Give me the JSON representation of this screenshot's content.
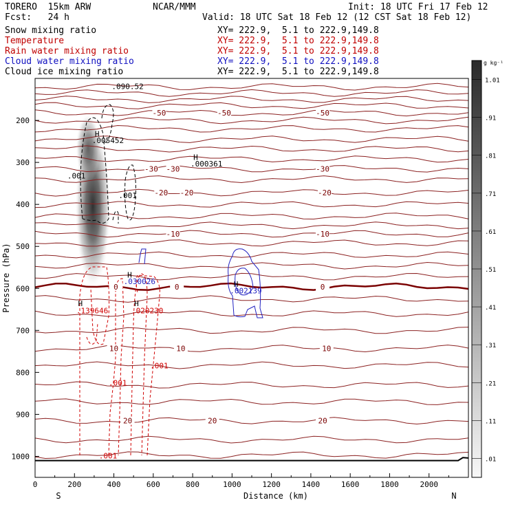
{
  "header": {
    "model": "TORERO  15km ARW",
    "center": "NCAR/MMM",
    "init": "Init: 18 UTC Fri 17 Feb 12",
    "fcst": "Fcst:   24 h",
    "valid": "Valid: 18 UTC Sat 18 Feb 12 (12 CST Sat 18 Feb 12)"
  },
  "fields": [
    {
      "name": "Snow mixing ratio",
      "xy": "XY= 222.9,  5.1 to 222.9,149.8",
      "color": "#000000"
    },
    {
      "name": "Temperature",
      "xy": "XY= 222.9,  5.1 to 222.9,149.8",
      "color": "#c00000"
    },
    {
      "name": "Rain water mixing ratio",
      "xy": "XY= 222.9,  5.1 to 222.9,149.8",
      "color": "#c00000"
    },
    {
      "name": "Cloud water mixing ratio",
      "xy": "XY= 222.9,  5.1 to 222.9,149.8",
      "color": "#1010c0"
    },
    {
      "name": "Cloud ice mixing ratio",
      "xy": "XY= 222.9,  5.1 to 222.9,149.8",
      "color": "#000000"
    }
  ],
  "chart_data": {
    "type": "cross-section contour",
    "xlabel": "Distance (km)",
    "ylabel": "Pressure (hPa)",
    "xlim": [
      0,
      2200
    ],
    "ylim": [
      1050,
      100
    ],
    "x_ticks": [
      "0",
      "200",
      "400",
      "600",
      "800",
      "1000",
      "1200",
      "1400",
      "1600",
      "1800",
      "2000"
    ],
    "x_tick_values": [
      0,
      200,
      400,
      600,
      800,
      1000,
      1200,
      1400,
      1600,
      1800,
      2000
    ],
    "y_ticks": [
      "200",
      "300",
      "400",
      "500",
      "600",
      "700",
      "800",
      "900",
      "1000"
    ],
    "y_tick_values": [
      200,
      300,
      400,
      500,
      600,
      700,
      800,
      900,
      1000
    ],
    "left_end_label": "S",
    "right_end_label": "N",
    "colorbar": {
      "unit": "g kg⁻¹",
      "labels": [
        "1.01",
        ".91",
        ".81",
        ".71",
        ".61",
        ".51",
        ".41",
        ".31",
        ".21",
        ".11",
        ".01"
      ],
      "values": [
        1.01,
        0.91,
        0.81,
        0.71,
        0.61,
        0.51,
        0.41,
        0.31,
        0.21,
        0.11,
        0.01
      ]
    },
    "temperature_contours": [
      {
        "label": "-50",
        "pressure": 182,
        "label_x": [
          630,
          960,
          1460
        ]
      },
      {
        "label": "-30",
        "pressure": 315,
        "label_x": [
          590,
          700,
          1460
        ]
      },
      {
        "label": "-20",
        "pressure": 372,
        "label_x": [
          640,
          770,
          1470
        ]
      },
      {
        "label": "-10",
        "pressure": 470,
        "label_x": [
          700,
          1460
        ]
      },
      {
        "label": "0",
        "pressure": 596,
        "label_x": [
          410,
          720,
          1460
        ]
      },
      {
        "label": "10",
        "pressure": 743,
        "label_x": [
          400,
          740,
          1480
        ]
      },
      {
        "label": "20",
        "pressure": 915,
        "label_x": [
          470,
          900,
          1460
        ]
      }
    ],
    "annotations": [
      {
        "text": "H",
        "x": 315,
        "p": 238
      },
      {
        "text": ".005452",
        "x": 370,
        "p": 254
      },
      {
        "text": "H",
        "x": 815,
        "p": 294
      },
      {
        "text": ".000361",
        "x": 870,
        "p": 310
      },
      {
        "text": ".001",
        "x": 210,
        "p": 338
      },
      {
        "text": ".001",
        "x": 470,
        "p": 385
      },
      {
        "text": ".090.52",
        "x": 470,
        "p": 125
      },
      {
        "text": "H",
        "x": 480,
        "p": 574
      },
      {
        "text": ".030026",
        "x": 530,
        "p": 590
      },
      {
        "text": "H",
        "x": 1020,
        "p": 596
      },
      {
        "text": ".002139",
        "x": 1070,
        "p": 612
      },
      {
        "text": "H",
        "x": 230,
        "p": 642
      },
      {
        "text": ".139646",
        "x": 290,
        "p": 659
      },
      {
        "text": "H",
        "x": 515,
        "p": 642
      },
      {
        "text": ".020230",
        "x": 570,
        "p": 659
      },
      {
        "text": ".001",
        "x": 630,
        "p": 790
      },
      {
        "text": ".001",
        "x": 420,
        "p": 831
      },
      {
        "text": ".001",
        "x": 370,
        "p": 1005
      }
    ]
  }
}
